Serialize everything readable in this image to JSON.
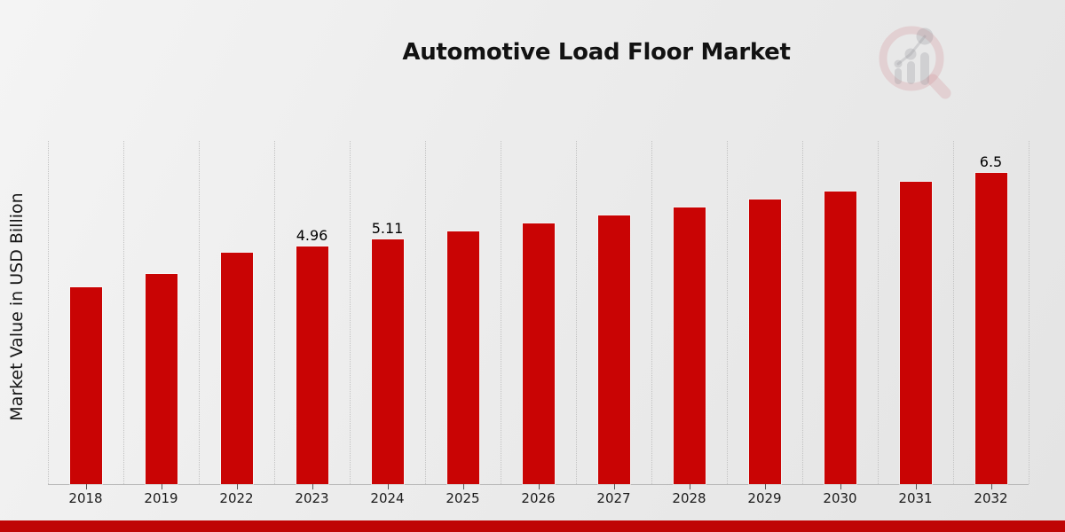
{
  "header": {
    "title": "Automotive Load Floor Market"
  },
  "branding": {
    "logo_icon": "magnifier-growth-chart-watermark-icon",
    "logo_ring_color": "#cf8d95",
    "logo_glyph_color": "#8f9096",
    "accent_bar_color": "#bf0505"
  },
  "chart_data": {
    "type": "bar",
    "title": "Automotive Load Floor Market",
    "xlabel": "",
    "ylabel": "Market Value in USD Billion",
    "categories": [
      "2018",
      "2019",
      "2022",
      "2023",
      "2024",
      "2025",
      "2026",
      "2027",
      "2028",
      "2029",
      "2030",
      "2031",
      "2032"
    ],
    "values": [
      4.11,
      4.38,
      4.83,
      4.96,
      5.11,
      5.27,
      5.44,
      5.61,
      5.78,
      5.94,
      6.11,
      6.31,
      6.5
    ],
    "value_labels": [
      "",
      "",
      "",
      "4.96",
      "5.11",
      "",
      "",
      "",
      "",
      "",
      "",
      "",
      "6.5"
    ],
    "ylim": [
      0,
      7.16
    ],
    "bar_color": "#c90404",
    "grid": "vertical dotted gridlines at category boundaries",
    "legend": "none",
    "y_ticks_shown": false
  }
}
